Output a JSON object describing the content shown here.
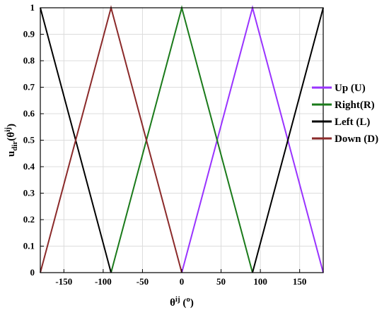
{
  "chart_data": {
    "type": "line",
    "title": "",
    "xlabel_base": "θ",
    "xlabel_sup": "ij",
    "xlabel_unit_open": " (",
    "xlabel_unit_sup": "o",
    "xlabel_unit_close": ")",
    "ylabel_base": "u",
    "ylabel_sub": "dir",
    "ylabel_open": "(θ",
    "ylabel_sup": "ij",
    "ylabel_close": ")",
    "xlim": [
      -180,
      180
    ],
    "ylim": [
      0,
      1
    ],
    "xticks": [
      -150,
      -100,
      -50,
      0,
      50,
      100,
      150
    ],
    "yticks": [
      0,
      0.1,
      0.2,
      0.3,
      0.4,
      0.5,
      0.6,
      0.7,
      0.8,
      0.9,
      1
    ],
    "grid": true,
    "legend_position": "right",
    "series": [
      {
        "name": "Up (U)",
        "color": "#9933ff",
        "x": [
          0,
          90,
          180
        ],
        "y": [
          0,
          1,
          0
        ]
      },
      {
        "name": "Right(R)",
        "color": "#1a7a1a",
        "x": [
          -90,
          0,
          90
        ],
        "y": [
          0,
          1,
          0
        ]
      },
      {
        "name": "Left (L)",
        "color": "#000000",
        "x": [
          -180,
          -90
        ],
        "y": [
          1,
          0
        ],
        "x2": [
          90,
          180
        ],
        "y2": [
          0,
          1
        ]
      },
      {
        "name": "Down (D)",
        "color": "#8b2a2a",
        "x": [
          -180,
          -90,
          0
        ],
        "y": [
          0,
          1,
          0
        ]
      }
    ]
  }
}
